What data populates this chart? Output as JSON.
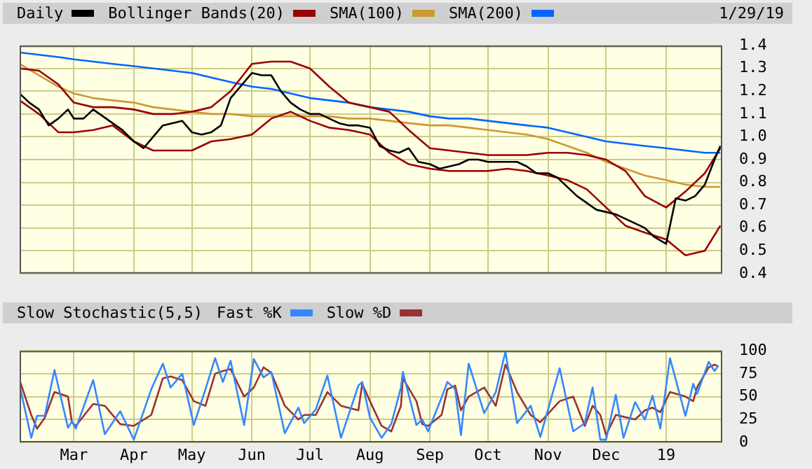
{
  "chart_data": [
    {
      "type": "line",
      "annotations": [
        "1/29/19"
      ],
      "legend": "top",
      "grid": true,
      "marker": "none",
      "tick_labels": "y",
      "xlim": [
        "2018-02-01",
        "2019-01-30"
      ],
      "xticks": [
        {
          "value": "2018-03-01",
          "label": null
        },
        {
          "value": "2018-04-01",
          "label": null
        },
        {
          "value": "2018-05-01",
          "label": null
        },
        {
          "value": "2018-06-01",
          "label": null
        },
        {
          "value": "2018-07-01",
          "label": null
        },
        {
          "value": "2018-08-01",
          "label": null
        },
        {
          "value": "2018-09-01",
          "label": null
        },
        {
          "value": "2018-10-01",
          "label": null
        },
        {
          "value": "2018-11-01",
          "label": null
        },
        {
          "value": "2018-12-01",
          "label": null
        },
        {
          "value": "2019-01-01",
          "label": null
        }
      ],
      "ylim": [
        0.4,
        1.4
      ],
      "yticks": [
        0.4,
        0.5,
        0.6,
        0.7,
        0.8,
        0.9,
        {
          "value": 1,
          "label": "1.0"
        },
        1.1,
        1.2,
        1.3,
        1.4
      ],
      "x": [
        "2018-02-01",
        "2018-02-11",
        "2018-02-21",
        "2018-03-01",
        "2018-03-11",
        "2018-03-21",
        "2018-04-01",
        "2018-04-11",
        "2018-04-21",
        "2018-05-01",
        "2018-05-11",
        "2018-05-21",
        "2018-06-01",
        "2018-06-11",
        "2018-06-21",
        "2018-07-01",
        "2018-07-11",
        "2018-07-21",
        "2018-08-01",
        "2018-08-11",
        "2018-08-21",
        "2018-09-01",
        "2018-09-11",
        "2018-09-21",
        "2018-10-01",
        "2018-10-11",
        "2018-10-21",
        "2018-11-01",
        "2018-11-11",
        "2018-11-21",
        "2018-12-01",
        "2018-12-11",
        "2018-12-21",
        "2019-01-01",
        "2019-01-11",
        "2019-01-21",
        "2019-01-29"
      ],
      "series": [
        {
          "name": "Daily",
          "color": "#000000",
          "x": [
            "2018-02-01",
            "2018-02-06",
            "2018-02-11",
            "2018-02-16",
            "2018-02-21",
            "2018-02-26",
            "2018-03-01",
            "2018-03-06",
            "2018-03-11",
            "2018-03-16",
            "2018-03-21",
            "2018-03-26",
            "2018-04-01",
            "2018-04-06",
            "2018-04-11",
            "2018-04-16",
            "2018-04-21",
            "2018-04-26",
            "2018-05-01",
            "2018-05-06",
            "2018-05-11",
            "2018-05-16",
            "2018-05-21",
            "2018-05-26",
            "2018-06-01",
            "2018-06-06",
            "2018-06-11",
            "2018-06-16",
            "2018-06-21",
            "2018-06-26",
            "2018-07-01",
            "2018-07-06",
            "2018-07-11",
            "2018-07-16",
            "2018-07-21",
            "2018-07-26",
            "2018-08-01",
            "2018-08-06",
            "2018-08-11",
            "2018-08-16",
            "2018-08-21",
            "2018-08-26",
            "2018-09-01",
            "2018-09-06",
            "2018-09-11",
            "2018-09-16",
            "2018-09-21",
            "2018-09-26",
            "2018-10-01",
            "2018-10-06",
            "2018-10-11",
            "2018-10-16",
            "2018-10-21",
            "2018-10-26",
            "2018-11-01",
            "2018-11-06",
            "2018-11-11",
            "2018-11-16",
            "2018-11-21",
            "2018-11-26",
            "2018-12-01",
            "2018-12-06",
            "2018-12-11",
            "2018-12-16",
            "2018-12-21",
            "2018-12-26",
            "2019-01-01",
            "2019-01-06",
            "2019-01-11",
            "2019-01-16",
            "2019-01-21",
            "2019-01-26",
            "2019-01-29"
          ],
          "values": [
            1.19,
            1.15,
            1.12,
            1.05,
            1.08,
            1.12,
            1.08,
            1.08,
            1.12,
            1.09,
            1.06,
            1.03,
            0.98,
            0.95,
            1.0,
            1.05,
            1.06,
            1.07,
            1.02,
            1.01,
            1.02,
            1.05,
            1.17,
            1.22,
            1.28,
            1.27,
            1.27,
            1.2,
            1.15,
            1.12,
            1.1,
            1.1,
            1.08,
            1.06,
            1.05,
            1.05,
            1.04,
            0.96,
            0.94,
            0.93,
            0.95,
            0.89,
            0.88,
            0.86,
            0.87,
            0.88,
            0.9,
            0.9,
            0.89,
            0.89,
            0.89,
            0.89,
            0.87,
            0.84,
            0.84,
            0.82,
            0.78,
            0.74,
            0.71,
            0.68,
            0.67,
            0.66,
            0.64,
            0.62,
            0.6,
            0.56,
            0.53,
            0.73,
            0.72,
            0.74,
            0.79,
            0.9,
            0.96
          ]
        },
        {
          "name": "Bollinger Bands(20)",
          "color": "#990000",
          "values": [
            1.3,
            1.29,
            1.23,
            1.15,
            1.13,
            1.13,
            1.12,
            1.1,
            1.1,
            1.11,
            1.13,
            1.2,
            1.32,
            1.33,
            1.33,
            1.3,
            1.22,
            1.15,
            1.13,
            1.11,
            1.03,
            0.95,
            0.94,
            0.93,
            0.92,
            0.92,
            0.92,
            0.93,
            0.93,
            0.92,
            0.9,
            0.85,
            0.74,
            0.69,
            0.76,
            0.84,
            0.95
          ]
        },
        {
          "color": "#990000",
          "values": [
            1.16,
            1.1,
            1.02,
            1.02,
            1.03,
            1.05,
            0.98,
            0.94,
            0.94,
            0.94,
            0.98,
            0.99,
            1.01,
            1.08,
            1.11,
            1.07,
            1.04,
            1.03,
            1.01,
            0.93,
            0.88,
            0.86,
            0.85,
            0.85,
            0.85,
            0.86,
            0.85,
            0.83,
            0.81,
            0.77,
            0.69,
            0.61,
            0.58,
            0.55,
            0.48,
            0.5,
            0.61
          ]
        },
        {
          "name": "SMA(100)",
          "color": "#cc9933",
          "values": [
            1.32,
            1.27,
            1.22,
            1.19,
            1.17,
            1.16,
            1.15,
            1.13,
            1.12,
            1.11,
            1.1,
            1.1,
            1.09,
            1.09,
            1.09,
            1.09,
            1.09,
            1.08,
            1.08,
            1.07,
            1.06,
            1.05,
            1.05,
            1.04,
            1.03,
            1.02,
            1.01,
            0.99,
            0.96,
            0.93,
            0.89,
            0.86,
            0.83,
            0.81,
            0.79,
            0.78,
            0.78
          ]
        },
        {
          "name": "SMA(200)",
          "color": "#0066ff",
          "values": [
            1.37,
            1.36,
            1.35,
            1.34,
            1.33,
            1.32,
            1.31,
            1.3,
            1.29,
            1.28,
            1.26,
            1.24,
            1.22,
            1.21,
            1.19,
            1.17,
            1.16,
            1.15,
            1.13,
            1.12,
            1.11,
            1.09,
            1.08,
            1.08,
            1.07,
            1.06,
            1.05,
            1.04,
            1.02,
            1.0,
            0.98,
            0.97,
            0.96,
            0.95,
            0.94,
            0.93,
            0.93
          ]
        }
      ]
    },
    {
      "type": "line",
      "title": "Slow Stochastic(5,5)",
      "legend": "top",
      "grid": true,
      "marker": "none",
      "xlim": [
        "2018-02-01",
        "2019-01-30"
      ],
      "xticks": [
        {
          "value": "2018-03-01",
          "label": "Mar"
        },
        {
          "value": "2018-04-01",
          "label": "Apr"
        },
        {
          "value": "2018-05-01",
          "label": "May"
        },
        {
          "value": "2018-06-01",
          "label": "Jun"
        },
        {
          "value": "2018-07-01",
          "label": "Jul"
        },
        {
          "value": "2018-08-01",
          "label": "Aug"
        },
        {
          "value": "2018-09-01",
          "label": "Sep"
        },
        {
          "value": "2018-10-01",
          "label": "Oct"
        },
        {
          "value": "2018-11-01",
          "label": "Nov"
        },
        {
          "value": "2018-12-01",
          "label": "Dec"
        },
        {
          "value": "2019-01-01",
          "label": "19"
        }
      ],
      "ylim": [
        0,
        100
      ],
      "yticks": [
        0,
        25,
        50,
        75,
        100
      ],
      "x": [
        "2018-02-01",
        "2018-02-07",
        "2018-02-10",
        "2018-02-14",
        "2018-02-19",
        "2018-02-26",
        "2018-02-28",
        "2018-03-02",
        "2018-03-11",
        "2018-03-17",
        "2018-03-25",
        "2018-04-01",
        "2018-04-10",
        "2018-04-16",
        "2018-04-20",
        "2018-04-26",
        "2018-05-02",
        "2018-05-08",
        "2018-05-13",
        "2018-05-17",
        "2018-05-21",
        "2018-05-28",
        "2018-06-02",
        "2018-06-07",
        "2018-06-11",
        "2018-06-18",
        "2018-06-25",
        "2018-06-28",
        "2018-07-04",
        "2018-07-10",
        "2018-07-17",
        "2018-07-26",
        "2018-07-28",
        "2018-08-01",
        "2018-08-07",
        "2018-08-12",
        "2018-08-17",
        "2018-08-18",
        "2018-08-25",
        "2018-08-28",
        "2018-08-31",
        "2018-09-07",
        "2018-09-10",
        "2018-09-14",
        "2018-09-17",
        "2018-09-21",
        "2018-09-29",
        "2018-10-05",
        "2018-10-10",
        "2018-10-16",
        "2018-10-23",
        "2018-10-28",
        "2018-11-07",
        "2018-11-14",
        "2018-11-20",
        "2018-11-24",
        "2018-11-28",
        "2018-12-01",
        "2018-12-06",
        "2018-12-10",
        "2018-12-16",
        "2018-12-21",
        "2018-12-25",
        "2018-12-29",
        "2019-01-03",
        "2019-01-11",
        "2019-01-15",
        "2019-01-17",
        "2019-01-23",
        "2019-01-26",
        "2019-01-28"
      ],
      "series": [
        {
          "name": "Fast %K",
          "color": "#3388ff",
          "values": [
            62,
            5,
            29,
            29,
            79,
            16,
            23,
            15,
            68,
            9,
            34,
            3,
            58,
            86,
            60,
            75,
            19,
            58,
            92,
            66,
            89,
            19,
            91,
            71,
            77,
            10,
            38,
            21,
            36,
            73,
            5,
            62,
            66,
            27,
            5,
            20,
            60,
            77,
            19,
            25,
            12,
            49,
            66,
            58,
            8,
            86,
            32,
            55,
            99,
            21,
            40,
            6,
            81,
            12,
            21,
            60,
            3,
            3,
            52,
            5,
            44,
            25,
            51,
            15,
            92,
            29,
            64,
            53,
            88,
            78,
            84
          ]
        },
        {
          "name": "Slow %D",
          "color": "#993333",
          "values": [
            68,
            30,
            15,
            27,
            55,
            50,
            22,
            18,
            42,
            40,
            20,
            18,
            30,
            70,
            72,
            68,
            45,
            40,
            75,
            78,
            80,
            50,
            60,
            82,
            76,
            40,
            25,
            30,
            30,
            55,
            40,
            35,
            64,
            45,
            18,
            12,
            40,
            70,
            45,
            20,
            18,
            30,
            58,
            62,
            35,
            50,
            60,
            40,
            85,
            55,
            30,
            22,
            45,
            50,
            18,
            40,
            30,
            8,
            30,
            28,
            25,
            35,
            38,
            33,
            55,
            50,
            45,
            60,
            82,
            85,
            83
          ]
        }
      ]
    }
  ]
}
